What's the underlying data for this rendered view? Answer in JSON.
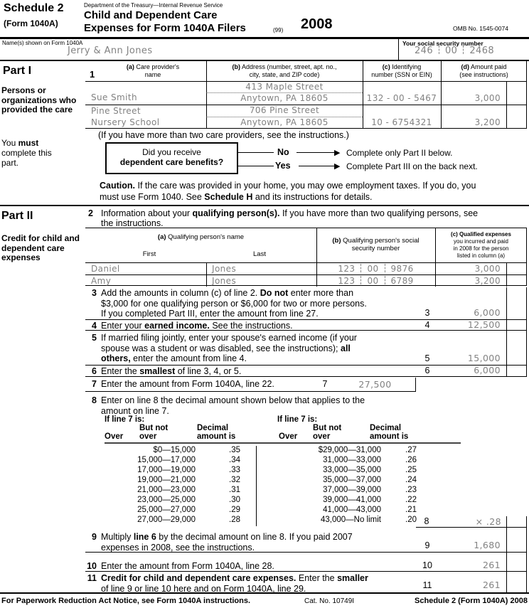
{
  "colors": {
    "ink": "#000000",
    "handwriting_fill": "#828282"
  },
  "header": {
    "schedule_label": "Schedule 2",
    "form_label": "(Form 1040A)",
    "agency": "Department of the Treasury—Internal Revenue Service",
    "title_line1": "Child and Dependent Care",
    "title_line2": "Expenses for Form 1040A Filers",
    "code": "(99)",
    "year": "2008",
    "omb": "OMB No. 1545-0074"
  },
  "name_row": {
    "name_label": "Name(s) shown on Form 1040A",
    "name_value": "Jerry & Ann Jones",
    "ssn_label": "Your social security number",
    "ssn_parts": [
      "246",
      "00",
      "2468"
    ]
  },
  "part1": {
    "label": "Part I",
    "sidebar_title": "Persons or organizations who provided the care",
    "sidebar_note_rows": [
      [
        {
          "t": "You "
        },
        {
          "t": "must",
          "b": true
        }
      ],
      [
        {
          "t": "complete this"
        }
      ],
      [
        {
          "t": "part."
        }
      ]
    ],
    "line_no": "1",
    "columns": {
      "a_rows": [
        [
          {
            "t": "(a)",
            "b": true
          },
          {
            "t": " Care provider's"
          }
        ],
        [
          {
            "t": "name"
          }
        ]
      ],
      "b_rows": [
        [
          {
            "t": "(b)",
            "b": true
          },
          {
            "t": " Address (number, street, apt. no.,"
          }
        ],
        [
          {
            "t": "city, state, and ZIP code)"
          }
        ]
      ],
      "c_rows": [
        [
          {
            "t": "(c)",
            "b": true
          },
          {
            "t": " Identifying"
          }
        ],
        [
          {
            "t": "number (SSN or EIN)"
          }
        ]
      ],
      "d_rows": [
        [
          {
            "t": "(d)",
            "b": true
          },
          {
            "t": " Amount paid"
          }
        ],
        [
          {
            "t": "(see instructions)"
          }
        ]
      ]
    },
    "providers": [
      {
        "name_line1": "",
        "name_line2": "Sue Smith",
        "street": "413 Maple Street",
        "city_state_zip": "Anytown, PA 18605",
        "id_number": "132 - 00 - 5467",
        "amount": "3,000"
      },
      {
        "name_line1": "Pine Street",
        "name_line2": "Nursery School",
        "street": "706 Pine Street",
        "city_state_zip": "Anytown, PA 18605",
        "id_number": "10 - 6754321",
        "amount": "3,200"
      }
    ],
    "more_providers_note": "(If you have more than two care providers, see the instructions.)",
    "flowchart": {
      "question_line1": "Did you receive",
      "question_line2": "dependent care benefits?",
      "no_label": "No",
      "no_result": "Complete only Part II below.",
      "yes_label": "Yes",
      "yes_result": "Complete Part III on the back next.",
      "arrow_glyph": "▶"
    },
    "caution_rows": [
      [
        {
          "t": "Caution.",
          "b": true
        },
        {
          "t": " If the care was provided in your home, you may owe employment taxes. If you do, you"
        }
      ],
      [
        {
          "t": "must use Form 1040. See "
        },
        {
          "t": "Schedule H",
          "b": true
        },
        {
          "t": " and its instructions for details."
        }
      ]
    ]
  },
  "part2": {
    "label": "Part II",
    "sidebar_title": "Credit for child and dependent care expenses",
    "line2_no": "2",
    "line2_rows": [
      [
        {
          "t": "Information about your "
        },
        {
          "t": "qualifying person(s).",
          "b": true
        },
        {
          "t": " If you have more than two qualifying persons, see"
        }
      ],
      [
        {
          "t": "the instructions."
        }
      ]
    ],
    "table": {
      "a_row": [
        {
          "t": "(a)",
          "b": true
        },
        {
          "t": " Qualifying person's name"
        }
      ],
      "first_label": "First",
      "last_label": "Last",
      "b_rows": [
        [
          {
            "t": "(b)",
            "b": true
          },
          {
            "t": " Qualifying person's social"
          }
        ],
        [
          {
            "t": "security number"
          }
        ]
      ],
      "c_rows": [
        [
          {
            "t": "(c) Qualified expenses",
            "b": true
          }
        ],
        [
          {
            "t": "you incurred and paid"
          }
        ],
        [
          {
            "t": "in 2008 for the person"
          }
        ],
        [
          {
            "t": "listed in column (a)"
          }
        ]
      ]
    },
    "persons": [
      {
        "first": "Daniel",
        "last": "Jones",
        "ssn_parts": [
          "123",
          "00",
          "9876"
        ],
        "amount": "3,000"
      },
      {
        "first": "Amy",
        "last": "Jones",
        "ssn_parts": [
          "123",
          "00",
          "6789"
        ],
        "amount": "3,200"
      }
    ],
    "lines": {
      "3": {
        "no": "3",
        "rows": [
          [
            {
              "t": "Add the amounts in column (c) of line 2. "
            },
            {
              "t": "Do not",
              "b": true
            },
            {
              "t": " enter more than"
            }
          ],
          [
            {
              "t": "$3,000 for one qualifying person or $6,000 for two or more persons."
            }
          ],
          [
            {
              "t": "If you completed Part III, enter the amount from line 27."
            }
          ]
        ],
        "value": "6,000"
      },
      "4": {
        "no": "4",
        "rows": [
          [
            {
              "t": "Enter your "
            },
            {
              "t": "earned income.",
              "b": true
            },
            {
              "t": " See the instructions."
            }
          ]
        ],
        "value": "12,500"
      },
      "5": {
        "no": "5",
        "rows": [
          [
            {
              "t": "If married filing jointly, enter your spouse's earned income (if your"
            }
          ],
          [
            {
              "t": "spouse was a student or was disabled, see the instructions); "
            },
            {
              "t": "all",
              "b": true
            }
          ],
          [
            {
              "t": "others,",
              "b": true
            },
            {
              "t": " enter the amount from line 4."
            }
          ]
        ],
        "value": "15,000"
      },
      "6": {
        "no": "6",
        "rows": [
          [
            {
              "t": "Enter the "
            },
            {
              "t": "smallest",
              "b": true
            },
            {
              "t": " of line 3, 4, or 5."
            }
          ]
        ],
        "value": "6,000"
      },
      "7": {
        "no": "7",
        "rows": [
          [
            {
              "t": "Enter the amount from Form 1040A, line 22."
            }
          ]
        ],
        "value": "27,500"
      },
      "8": {
        "no": "8",
        "rows": [
          [
            {
              "t": "Enter on line 8 the decimal amount shown below that applies to the"
            }
          ],
          [
            {
              "t": "amount on line 7."
            }
          ]
        ],
        "value": "× .28"
      },
      "9": {
        "no": "9",
        "rows": [
          [
            {
              "t": "Multiply "
            },
            {
              "t": "line 6",
              "b": true
            },
            {
              "t": " by the decimal amount on line 8. If you paid 2007"
            }
          ],
          [
            {
              "t": "expenses in 2008, see the instructions."
            }
          ]
        ],
        "value": "1,680"
      },
      "10": {
        "no": "10",
        "rows": [
          [
            {
              "t": "Enter the amount from Form 1040A, line 28."
            }
          ]
        ],
        "value": "261"
      },
      "11": {
        "no": "11",
        "rows": [
          [
            {
              "t": "Credit for child and dependent care expenses.",
              "b": true
            },
            {
              "t": " Enter the "
            },
            {
              "t": "smaller",
              "b": true
            }
          ],
          [
            {
              "t": "of line 9 or line 10 here and on Form 1040A, line 29."
            }
          ]
        ],
        "value": "261"
      }
    },
    "decimal_table": {
      "heading": "If line 7 is:",
      "over_label": "Over",
      "butnot_line1": "But not",
      "butnot_line2": "over",
      "decimal_line1": "Decimal",
      "decimal_line2": "amount is",
      "left_rows": [
        {
          "range": "$0—15,000",
          "decimal": ".35"
        },
        {
          "range": "15,000—17,000",
          "decimal": ".34"
        },
        {
          "range": "17,000—19,000",
          "decimal": ".33"
        },
        {
          "range": "19,000—21,000",
          "decimal": ".32"
        },
        {
          "range": "21,000—23,000",
          "decimal": ".31"
        },
        {
          "range": "23,000—25,000",
          "decimal": ".30"
        },
        {
          "range": "25,000—27,000",
          "decimal": ".29"
        },
        {
          "range": "27,000—29,000",
          "decimal": ".28"
        }
      ],
      "right_rows": [
        {
          "range": "$29,000—31,000",
          "decimal": ".27"
        },
        {
          "range": "31,000—33,000",
          "decimal": ".26"
        },
        {
          "range": "33,000—35,000",
          "decimal": ".25"
        },
        {
          "range": "35,000—37,000",
          "decimal": ".24"
        },
        {
          "range": "37,000—39,000",
          "decimal": ".23"
        },
        {
          "range": "39,000—41,000",
          "decimal": ".22"
        },
        {
          "range": "41,000—43,000",
          "decimal": ".21"
        },
        {
          "range": "43,000—No limit",
          "decimal": ".20"
        }
      ]
    }
  },
  "footer": {
    "notice": "For Paperwork Reduction Act Notice, see Form 1040A instructions.",
    "cat_no": "Cat. No. 10749I",
    "form_id": "Schedule 2 (Form 1040A) 2008"
  }
}
